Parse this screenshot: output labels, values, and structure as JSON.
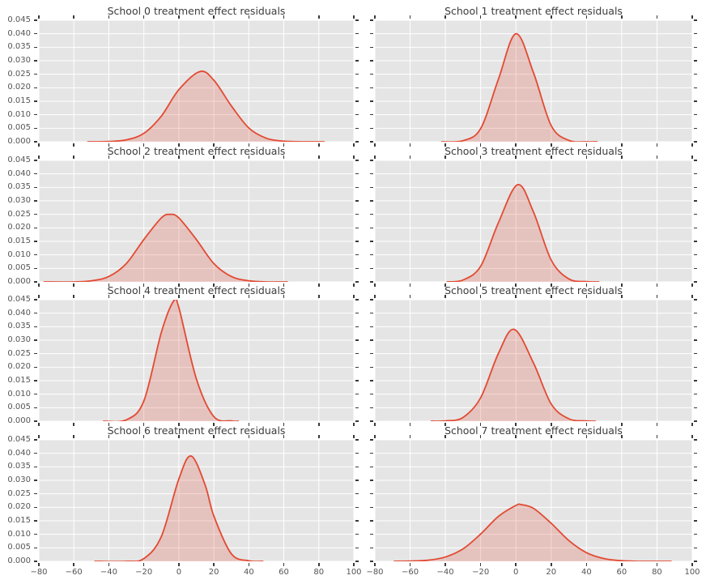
{
  "figure": {
    "kind": "matplotlib-ggplot-style-density-grid",
    "rows": 4,
    "cols": 2,
    "background": "#ffffff"
  },
  "style": {
    "axes_background": "#e5e5e5",
    "grid_color": "#ffffff",
    "line_color": "#e24a33",
    "fill_alpha": 0.22,
    "tick_color": "#3a3a3a",
    "tick_label_color": "#555555",
    "title_color": "#3c3c3c"
  },
  "axis": {
    "xlim": [
      -80,
      100
    ],
    "ylim": [
      0,
      0.045
    ],
    "xticks": [
      -80,
      -60,
      -40,
      -20,
      0,
      20,
      40,
      60,
      80,
      100
    ],
    "xtick_labels": [
      "−80",
      "−60",
      "−40",
      "−20",
      "0",
      "20",
      "40",
      "60",
      "80",
      "100"
    ],
    "yticks": [
      0.0,
      0.005,
      0.01,
      0.015,
      0.02,
      0.025,
      0.03,
      0.035,
      0.04,
      0.045
    ],
    "ytick_labels": [
      "0.000",
      "0.005",
      "0.010",
      "0.015",
      "0.020",
      "0.025",
      "0.030",
      "0.035",
      "0.040",
      "0.045"
    ],
    "grid": true,
    "legend": "none"
  },
  "chart_data": [
    {
      "type": "area",
      "school": 0,
      "title": "School 0 treatment effect residuals",
      "xlim": [
        -80,
        100
      ],
      "ylim": [
        0,
        0.045
      ],
      "curve_summary": {
        "mean": 12,
        "sd": 15.5,
        "peak_density": 0.026
      },
      "points": {
        "x": [
          -52,
          -40,
          -30,
          -20,
          -10,
          0,
          12,
          20,
          30,
          40,
          50,
          60,
          70,
          83
        ],
        "density": [
          0,
          0.0001,
          0.0007,
          0.0031,
          0.0095,
          0.0193,
          0.026,
          0.0228,
          0.0133,
          0.0051,
          0.0013,
          0.0002,
          0,
          0
        ]
      }
    },
    {
      "type": "area",
      "school": 1,
      "title": "School 1 treatment effect residuals",
      "xlim": [
        -80,
        100
      ],
      "ylim": [
        0,
        0.045
      ],
      "curve_summary": {
        "mean": 0.5,
        "sd": 10,
        "peak_density": 0.04
      },
      "points": {
        "x": [
          -42,
          -30,
          -20,
          -10,
          0,
          10,
          20,
          30,
          40,
          46
        ],
        "density": [
          0,
          0.0004,
          0.0049,
          0.023,
          0.04,
          0.0255,
          0.006,
          0.0005,
          0,
          0
        ]
      }
    },
    {
      "type": "area",
      "school": 2,
      "title": "School 2 treatment effect residuals",
      "xlim": [
        -80,
        100
      ],
      "ylim": [
        0,
        0.045
      ],
      "curve_summary": {
        "mean": -5,
        "sd": 15.5,
        "peak_density": 0.025
      },
      "points": {
        "x": [
          -77,
          -60,
          -50,
          -40,
          -30,
          -20,
          -10,
          -5,
          0,
          10,
          20,
          30,
          40,
          50,
          62
        ],
        "density": [
          0,
          0,
          0.0004,
          0.002,
          0.0068,
          0.0157,
          0.0237,
          0.025,
          0.0237,
          0.0157,
          0.0068,
          0.002,
          0.0004,
          0,
          0
        ]
      }
    },
    {
      "type": "area",
      "school": 3,
      "title": "School 3 treatment effect residuals",
      "xlim": [
        -80,
        100
      ],
      "ylim": [
        0,
        0.045
      ],
      "curve_summary": {
        "mean": 1,
        "sd": 11,
        "peak_density": 0.036
      },
      "points": {
        "x": [
          -39,
          -30,
          -20,
          -10,
          1,
          10,
          20,
          30,
          40,
          47
        ],
        "density": [
          0,
          0.0007,
          0.0058,
          0.0218,
          0.036,
          0.0258,
          0.0081,
          0.0011,
          0.0001,
          0
        ]
      }
    },
    {
      "type": "area",
      "school": 4,
      "title": "School 4 treatment effect residuals",
      "xlim": [
        -80,
        100
      ],
      "ylim": [
        0,
        0.045
      ],
      "curve_summary": {
        "mean": -3,
        "sd": 9,
        "peak_density": 0.0445
      },
      "points": {
        "x": [
          -43,
          -30,
          -20,
          -10,
          -3,
          0,
          10,
          20,
          30,
          34
        ],
        "density": [
          0,
          0.0005,
          0.0075,
          0.0329,
          0.0445,
          0.0421,
          0.0157,
          0.0017,
          0.0001,
          0
        ]
      }
    },
    {
      "type": "area",
      "school": 5,
      "title": "School 5 treatment effect residuals",
      "xlim": [
        -80,
        100
      ],
      "ylim": [
        0,
        0.045
      ],
      "curve_summary": {
        "mean": -1,
        "sd": 11.5,
        "peak_density": 0.034
      },
      "points": {
        "x": [
          -48,
          -40,
          -30,
          -20,
          -10,
          -1,
          10,
          20,
          30,
          40,
          45
        ],
        "density": [
          0,
          0.0001,
          0.0014,
          0.0087,
          0.025,
          0.034,
          0.0215,
          0.0064,
          0.0009,
          0.0001,
          0
        ]
      }
    },
    {
      "type": "area",
      "school": 6,
      "title": "School 6 treatment effect residuals",
      "xlim": [
        -80,
        100
      ],
      "ylim": [
        0,
        0.045
      ],
      "curve_summary": {
        "mean": 7,
        "sd": 10,
        "peak_density": 0.039
      },
      "points": {
        "x": [
          -48,
          -30,
          -20,
          -10,
          0,
          7,
          15,
          20,
          30,
          40,
          48
        ],
        "density": [
          0,
          0,
          0.001,
          0.0092,
          0.0305,
          0.039,
          0.0283,
          0.0168,
          0.0028,
          0.0002,
          0
        ]
      }
    },
    {
      "type": "area",
      "school": 7,
      "title": "School 7 treatment effect residuals",
      "xlim": [
        -80,
        100
      ],
      "ylim": [
        0,
        0.045
      ],
      "curve_summary": {
        "mean": 3,
        "sd": 19,
        "peak_density": 0.021
      },
      "points": {
        "x": [
          -69,
          -60,
          -50,
          -40,
          -30,
          -20,
          -10,
          0,
          3,
          10,
          20,
          30,
          40,
          50,
          60,
          70,
          88
        ],
        "density": [
          0,
          0.0001,
          0.0004,
          0.0016,
          0.0046,
          0.0101,
          0.0166,
          0.0207,
          0.021,
          0.0196,
          0.0141,
          0.0077,
          0.0032,
          0.001,
          0.0002,
          0,
          0
        ]
      }
    }
  ]
}
